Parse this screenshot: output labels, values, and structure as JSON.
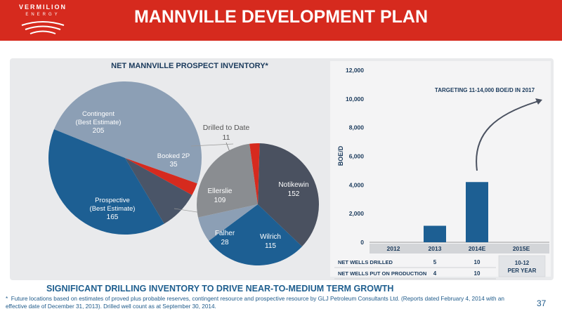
{
  "header": {
    "title": "MANNVILLE DEVELOPMENT PLAN",
    "logo_name": "VERMILION",
    "logo_sub": "ENERGY",
    "color": "#d62a1e"
  },
  "chart_data": [
    {
      "type": "pie",
      "title": "NET MANNVILLE PROSPECT INVENTORY*",
      "slices": [
        {
          "label": "Contingent",
          "sublabel": "(Best Estimate)",
          "value": 205,
          "color": "#8c9fb5"
        },
        {
          "label": "Drilled to Date",
          "value": 11,
          "color": "#d62a1e"
        },
        {
          "label": "Booked 2P",
          "value": 35,
          "color": "#4a5568"
        },
        {
          "label": "Prospective",
          "sublabel": "(Best Estimate)",
          "value": 165,
          "color": "#1d5f93"
        }
      ]
    },
    {
      "type": "pie",
      "title": "",
      "slices": [
        {
          "label": "Notikewin",
          "value": 152,
          "color": "#4a5160"
        },
        {
          "label": "Wilrich",
          "value": 115,
          "color": "#1d5f93"
        },
        {
          "label": "Falher",
          "value": 28,
          "color": "#8c9fb5"
        },
        {
          "label": "Ellerslie",
          "value": 109,
          "color": "#8a8d91"
        },
        {
          "label": "",
          "value": 11,
          "color": "#d62a1e"
        }
      ]
    },
    {
      "type": "bar",
      "title": "",
      "ylabel": "BOE/D",
      "categories": [
        "2012",
        "2013",
        "2014E",
        "2015E"
      ],
      "values": [
        0,
        1150,
        4200,
        null
      ],
      "ylim": [
        0,
        12000
      ],
      "yticks": [
        "0",
        "2,000",
        "4,000",
        "6,000",
        "8,000",
        "10,000",
        "12,000"
      ],
      "annotation": "TARGETING 11-14,000 BOE/D IN 2017",
      "bar_color": "#1d5f93"
    }
  ],
  "table": {
    "rows": [
      {
        "label": "NET WELLS DRILLED",
        "values": [
          "5",
          "10"
        ]
      },
      {
        "label": "NET WELLS PUT ON PRODUCTION",
        "values": [
          "4",
          "10"
        ]
      }
    ],
    "merged_2015": [
      "10-12",
      "PER YEAR"
    ]
  },
  "footer": {
    "subtitle": "SIGNIFICANT DRILLING INVENTORY TO DRIVE NEAR-TO-MEDIUM TERM GROWTH",
    "footnote_marker": "*",
    "footnote": "Future locations based on estimates of proved plus probable reserves, contingent resource and prospective resource by GLJ Petroleum Consultants Ltd. (Reports dated February 4, 2014 with an effective date of December 31, 2013). Drilled well count as at September 30, 2014.",
    "page_number": "37"
  }
}
